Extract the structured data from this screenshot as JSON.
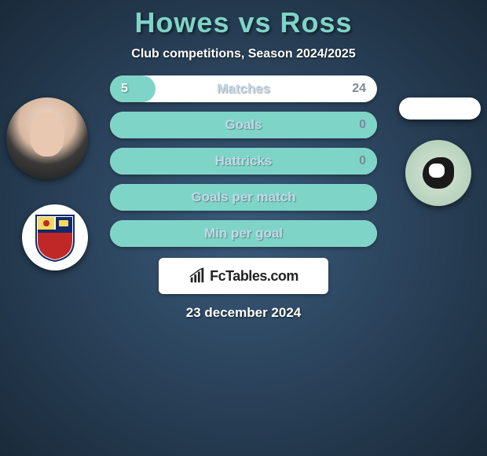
{
  "title": "Howes vs Ross",
  "subtitle": "Club competitions, Season 2024/2025",
  "date": "23 december 2024",
  "logo_text": "FcTables.com",
  "stat_rows": [
    {
      "label": "Matches",
      "left": "5",
      "right": "24",
      "fill_pct": 17
    },
    {
      "label": "Goals",
      "left": "",
      "right": "0",
      "fill_pct": 100
    },
    {
      "label": "Hattricks",
      "left": "",
      "right": "0",
      "fill_pct": 100
    },
    {
      "label": "Goals per match",
      "left": "",
      "right": "",
      "fill_pct": 100
    },
    {
      "label": "Min per goal",
      "left": "",
      "right": "",
      "fill_pct": 100
    }
  ],
  "colors": {
    "accent": "#7fd4c8",
    "bar_bg": "#ffffff",
    "text_light": "#ffffff",
    "text_muted": "#c4d8e8",
    "text_right": "#7a8a9a",
    "page_bg_inner": "#3a5a7a",
    "page_bg_outer": "#1a2a3a"
  },
  "avatars": {
    "player_left": "howes-photo",
    "club_left": "wealdstone-crest",
    "player_right": "ross-placeholder",
    "club_right": "magpie-crest"
  }
}
